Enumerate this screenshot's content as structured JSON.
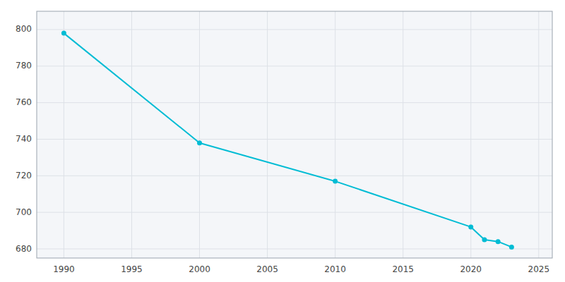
{
  "chart_data": {
    "type": "line",
    "x": [
      1990,
      2000,
      2010,
      2020,
      2021,
      2022,
      2023
    ],
    "values": [
      798,
      738,
      717,
      692,
      685,
      684,
      681
    ],
    "color": "#00BCD4",
    "marker": "circle",
    "xlim": [
      1988,
      2026
    ],
    "ylim": [
      675,
      810
    ],
    "xticks": [
      1990,
      1995,
      2000,
      2005,
      2010,
      2015,
      2020,
      2025
    ],
    "yticks": [
      680,
      700,
      720,
      740,
      760,
      780,
      800
    ],
    "grid": true
  }
}
